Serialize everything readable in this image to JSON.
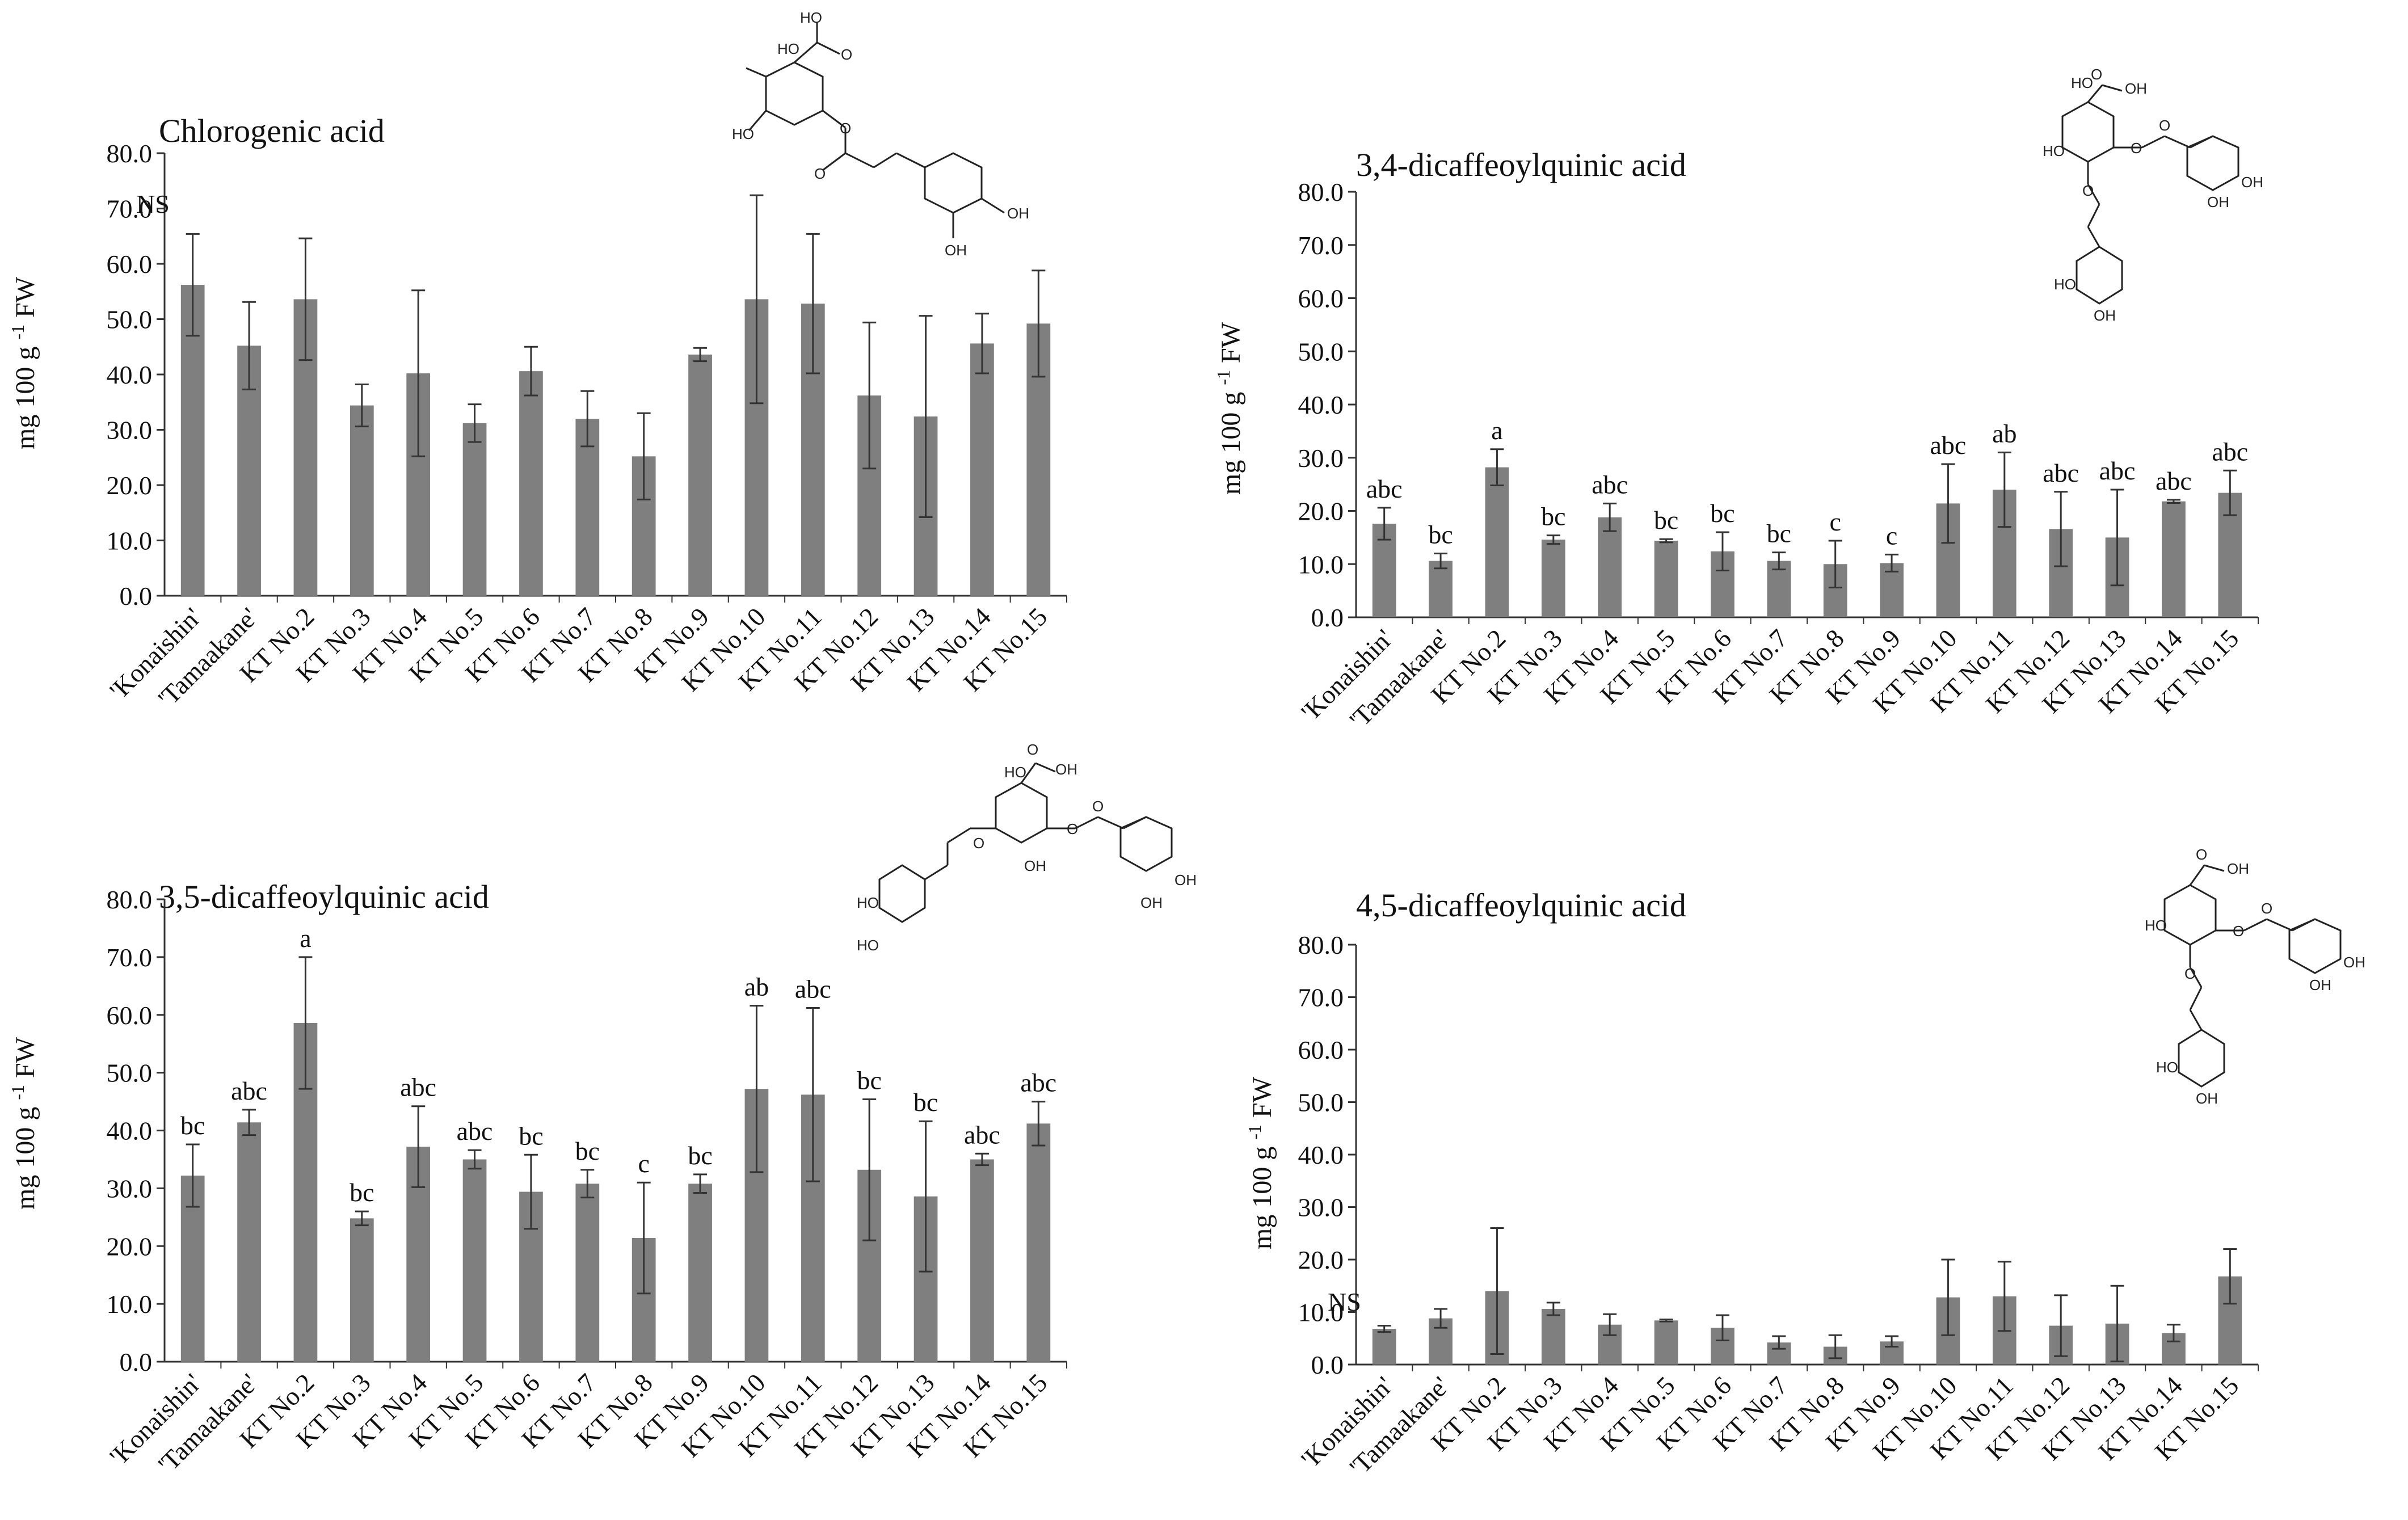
{
  "chart_data": [
    {
      "type": "bar",
      "title": "Chlorogenic acid",
      "ylabel": "mg 100 g",
      "ylabel_sup": "-1",
      "ylabel_unit": "FW",
      "ylim": [
        0,
        80
      ],
      "yticks": [
        "0.0",
        "10.0",
        "20.0",
        "30.0",
        "40.0",
        "50.0",
        "60.0",
        "70.0",
        "80.0"
      ],
      "grid": false,
      "categories": [
        "'Konaishin'",
        "'Tamaakane'",
        "KT No.2",
        "KT No.3",
        "KT No.4",
        "KT No.5",
        "KT No.6",
        "KT No.7",
        "KT No.8",
        "KT No.9",
        "KT No.10",
        "KT No.11",
        "KT No.12",
        "KT No.13",
        "KT No.14",
        "KT No.15"
      ],
      "values": [
        56.2,
        45.2,
        53.6,
        34.4,
        40.2,
        31.2,
        40.6,
        32.0,
        25.2,
        43.6,
        53.6,
        52.8,
        36.2,
        32.4,
        45.6,
        49.2
      ],
      "errors": [
        9.2,
        7.9,
        11.0,
        3.8,
        15.0,
        3.4,
        4.4,
        5.0,
        7.8,
        1.2,
        18.8,
        12.6,
        13.2,
        18.2,
        5.4,
        9.6
      ],
      "significance": [
        "NS"
      ],
      "color": "#7f7f7f"
    },
    {
      "type": "bar",
      "title": "3,4-dicaffeoylquinic acid",
      "ylabel": "mg 100 g",
      "ylabel_sup": "-1",
      "ylabel_unit": "FW",
      "ylim": [
        0,
        80
      ],
      "yticks": [
        "0.0",
        "10.0",
        "20.0",
        "30.0",
        "40.0",
        "50.0",
        "60.0",
        "70.0",
        "80.0"
      ],
      "grid": false,
      "categories": [
        "'Konaishin'",
        "'Tamaakane'",
        "KT No.2",
        "KT No.3",
        "KT No.4",
        "KT No.5",
        "KT No.6",
        "KT No.7",
        "KT No.8",
        "KT No.9",
        "KT No.10",
        "KT No.11",
        "KT No.12",
        "KT No.13",
        "KT No.14",
        "KT No.15"
      ],
      "values": [
        17.6,
        10.6,
        28.2,
        14.6,
        18.8,
        14.4,
        12.4,
        10.6,
        10.0,
        10.2,
        21.4,
        24.0,
        16.6,
        15.0,
        21.8,
        23.4
      ],
      "errors": [
        3.0,
        1.4,
        3.4,
        0.8,
        2.6,
        0.3,
        3.6,
        1.6,
        4.4,
        1.6,
        7.4,
        7.0,
        7.0,
        9.0,
        0.3,
        4.2
      ],
      "significance": [
        "abc",
        "bc",
        "a",
        "bc",
        "abc",
        "bc",
        "bc",
        "bc",
        "c",
        "c",
        "abc",
        "ab",
        "abc",
        "abc",
        "abc",
        "abc"
      ],
      "color": "#7f7f7f"
    },
    {
      "type": "bar",
      "title": "3,5-dicaffeoylquinic acid",
      "ylabel": "mg 100 g",
      "ylabel_sup": "-1",
      "ylabel_unit": "FW",
      "ylim": [
        0,
        80
      ],
      "yticks": [
        "0.0",
        "10.0",
        "20.0",
        "30.0",
        "40.0",
        "50.0",
        "60.0",
        "70.0",
        "80.0"
      ],
      "grid": false,
      "categories": [
        "'Konaishin'",
        "'Tamaakane'",
        "KT No.2",
        "KT No.3",
        "KT No.4",
        "KT No.5",
        "KT No.6",
        "KT No.7",
        "KT No.8",
        "KT No.9",
        "KT No.10",
        "KT No.11",
        "KT No.12",
        "KT No.13",
        "KT No.14",
        "KT No.15"
      ],
      "values": [
        32.2,
        41.4,
        58.6,
        24.8,
        37.2,
        35.0,
        29.4,
        30.8,
        21.4,
        30.8,
        47.2,
        46.2,
        33.2,
        28.6,
        35.0,
        41.2
      ],
      "errors": [
        5.4,
        2.2,
        11.4,
        1.2,
        7.0,
        1.6,
        6.4,
        2.4,
        9.6,
        1.6,
        14.4,
        15.0,
        12.2,
        13.0,
        1.0,
        3.8
      ],
      "significance": [
        "bc",
        "abc",
        "a",
        "bc",
        "abc",
        "abc",
        "bc",
        "bc",
        "c",
        "bc",
        "ab",
        "abc",
        "bc",
        "bc",
        "abc",
        "abc"
      ],
      "color": "#7f7f7f"
    },
    {
      "type": "bar",
      "title": "4,5-dicaffeoylquinic acid",
      "ylabel": "mg 100 g",
      "ylabel_sup": "-1",
      "ylabel_unit": "FW",
      "ylim": [
        0,
        80
      ],
      "yticks": [
        "0.0",
        "10.0",
        "20.0",
        "30.0",
        "40.0",
        "50.0",
        "60.0",
        "70.0",
        "80.0"
      ],
      "grid": false,
      "categories": [
        "'Konaishin'",
        "'Tamaakane'",
        "KT No.2",
        "KT No.3",
        "KT No.4",
        "KT No.5",
        "KT No.6",
        "KT No.7",
        "KT No.8",
        "KT No.9",
        "KT No.10",
        "KT No.11",
        "KT No.12",
        "KT No.13",
        "KT No.14",
        "KT No.15"
      ],
      "values": [
        6.8,
        8.8,
        14.0,
        10.6,
        7.6,
        8.4,
        7.0,
        4.2,
        3.4,
        4.4,
        12.8,
        13.0,
        7.4,
        7.8,
        6.0,
        16.8
      ],
      "errors": [
        0.6,
        1.8,
        12.0,
        1.2,
        2.0,
        0.2,
        2.4,
        1.2,
        2.2,
        1.0,
        7.2,
        6.6,
        5.8,
        7.2,
        1.6,
        5.2
      ],
      "significance": [
        "NS"
      ],
      "color": "#7f7f7f"
    }
  ],
  "structures": {
    "chlorogenic_acid": {
      "labels": [
        "HO",
        "O",
        "HO",
        "O",
        "HO",
        "OH",
        "O",
        "OH"
      ]
    },
    "dicaffeoyl_34": {
      "labels": [
        "HO",
        "OH",
        "O",
        "O",
        "O",
        "HO",
        "O",
        "OH",
        "OH",
        "HO",
        "OH"
      ]
    },
    "dicaffeoyl_35": {
      "labels": [
        "O",
        "HO",
        "OH",
        "O",
        "O",
        "O",
        "OH",
        "OH",
        "HO",
        "HO",
        "OH"
      ]
    },
    "dicaffeoyl_45": {
      "labels": [
        "O",
        "OH",
        "HO",
        "O",
        "O",
        "O",
        "OH",
        "OH",
        "HO",
        "OH"
      ]
    }
  }
}
